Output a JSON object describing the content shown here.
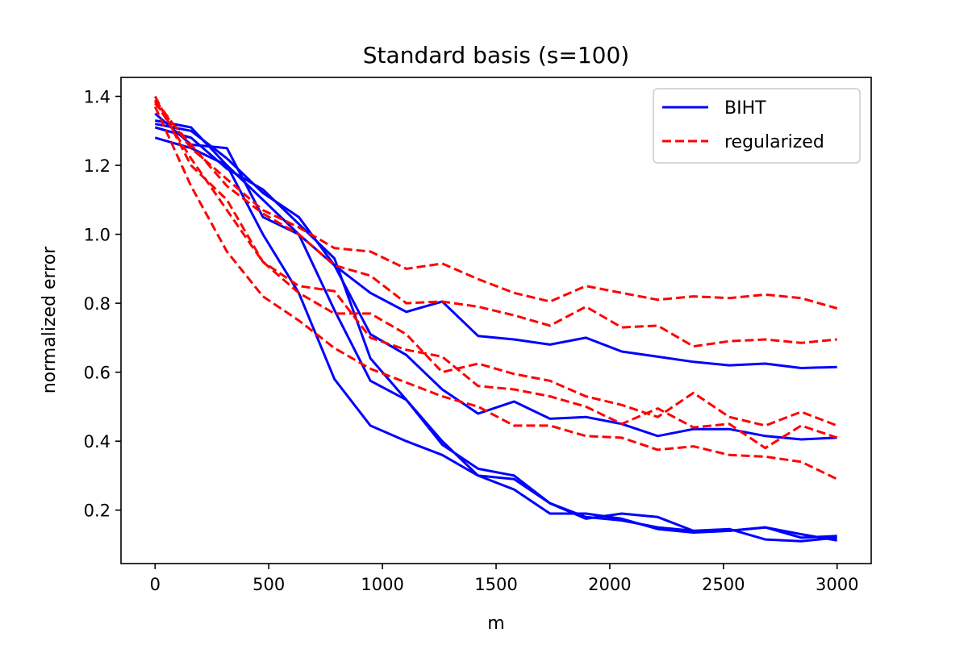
{
  "chart_data": {
    "type": "line",
    "title": "Standard basis (s=100)",
    "xlabel": "m",
    "ylabel": "normalized error",
    "xlim": [
      -150,
      3150
    ],
    "ylim": [
      0.045,
      1.455
    ],
    "xticks": [
      0,
      500,
      1000,
      1500,
      2000,
      2500,
      3000
    ],
    "yticks": [
      0.2,
      0.4,
      0.6,
      0.8,
      1.0,
      1.2,
      1.4
    ],
    "grid": false,
    "legend": {
      "position": "top-right"
    },
    "x": [
      0,
      158,
      316,
      474,
      632,
      789,
      947,
      1105,
      1263,
      1421,
      1579,
      1737,
      1895,
      2053,
      2211,
      2368,
      2526,
      2684,
      2842,
      3000
    ],
    "series": [
      {
        "name": "BIHT",
        "group": "BIHT",
        "color": "#0000ff",
        "dash": "solid",
        "values": [
          1.28,
          1.25,
          1.2,
          1.1,
          1.0,
          0.91,
          0.83,
          0.775,
          0.805,
          0.705,
          0.695,
          0.68,
          0.7,
          0.66,
          0.645,
          0.63,
          0.62,
          0.625,
          0.612,
          0.615
        ]
      },
      {
        "group": "BIHT",
        "color": "#0000ff",
        "dash": "solid",
        "values": [
          1.33,
          1.31,
          1.2,
          1.0,
          0.83,
          0.58,
          0.445,
          0.4,
          0.36,
          0.3,
          0.29,
          0.22,
          0.175,
          0.19,
          0.18,
          0.14,
          0.145,
          0.115,
          0.11,
          0.12
        ]
      },
      {
        "group": "BIHT",
        "color": "#0000ff",
        "dash": "solid",
        "values": [
          1.35,
          1.26,
          1.25,
          1.05,
          1.0,
          0.78,
          0.575,
          0.52,
          0.39,
          0.32,
          0.3,
          0.22,
          0.18,
          0.17,
          0.15,
          0.14,
          0.14,
          0.15,
          0.12,
          0.125
        ]
      },
      {
        "group": "BIHT",
        "color": "#0000ff",
        "dash": "solid",
        "values": [
          1.32,
          1.3,
          1.22,
          1.12,
          1.05,
          0.91,
          0.71,
          0.65,
          0.55,
          0.48,
          0.515,
          0.465,
          0.47,
          0.45,
          0.415,
          0.435,
          0.435,
          0.415,
          0.405,
          0.41
        ]
      },
      {
        "group": "BIHT",
        "color": "#0000ff",
        "dash": "solid",
        "values": [
          1.31,
          1.28,
          1.19,
          1.13,
          1.03,
          0.93,
          0.64,
          0.52,
          0.4,
          0.3,
          0.26,
          0.19,
          0.19,
          0.175,
          0.145,
          0.135,
          0.14,
          0.15,
          0.13,
          0.112
        ]
      },
      {
        "name": "regularized",
        "group": "regularized",
        "color": "#ff0000",
        "dash": "dashed",
        "values": [
          1.39,
          1.25,
          1.16,
          1.07,
          1.02,
          0.96,
          0.95,
          0.9,
          0.915,
          0.87,
          0.83,
          0.805,
          0.85,
          0.83,
          0.81,
          0.82,
          0.815,
          0.825,
          0.815,
          0.785
        ]
      },
      {
        "group": "regularized",
        "color": "#ff0000",
        "dash": "dashed",
        "values": [
          1.38,
          1.26,
          1.14,
          1.06,
          1.0,
          0.91,
          0.88,
          0.8,
          0.805,
          0.79,
          0.765,
          0.735,
          0.79,
          0.73,
          0.735,
          0.675,
          0.69,
          0.695,
          0.685,
          0.695
        ]
      },
      {
        "group": "regularized",
        "color": "#ff0000",
        "dash": "dashed",
        "values": [
          1.4,
          1.2,
          1.1,
          0.92,
          0.85,
          0.835,
          0.7,
          0.665,
          0.645,
          0.56,
          0.55,
          0.53,
          0.5,
          0.45,
          0.495,
          0.44,
          0.45,
          0.38,
          0.445,
          0.41
        ]
      },
      {
        "group": "regularized",
        "color": "#ff0000",
        "dash": "dashed",
        "values": [
          1.37,
          1.14,
          0.95,
          0.82,
          0.75,
          0.67,
          0.61,
          0.57,
          0.53,
          0.5,
          0.445,
          0.445,
          0.415,
          0.41,
          0.375,
          0.385,
          0.36,
          0.355,
          0.34,
          0.29
        ]
      },
      {
        "group": "regularized",
        "color": "#ff0000",
        "dash": "dashed",
        "values": [
          1.385,
          1.22,
          1.07,
          0.92,
          0.83,
          0.77,
          0.77,
          0.71,
          0.6,
          0.625,
          0.595,
          0.575,
          0.53,
          0.505,
          0.47,
          0.54,
          0.47,
          0.445,
          0.485,
          0.445
        ]
      }
    ]
  }
}
